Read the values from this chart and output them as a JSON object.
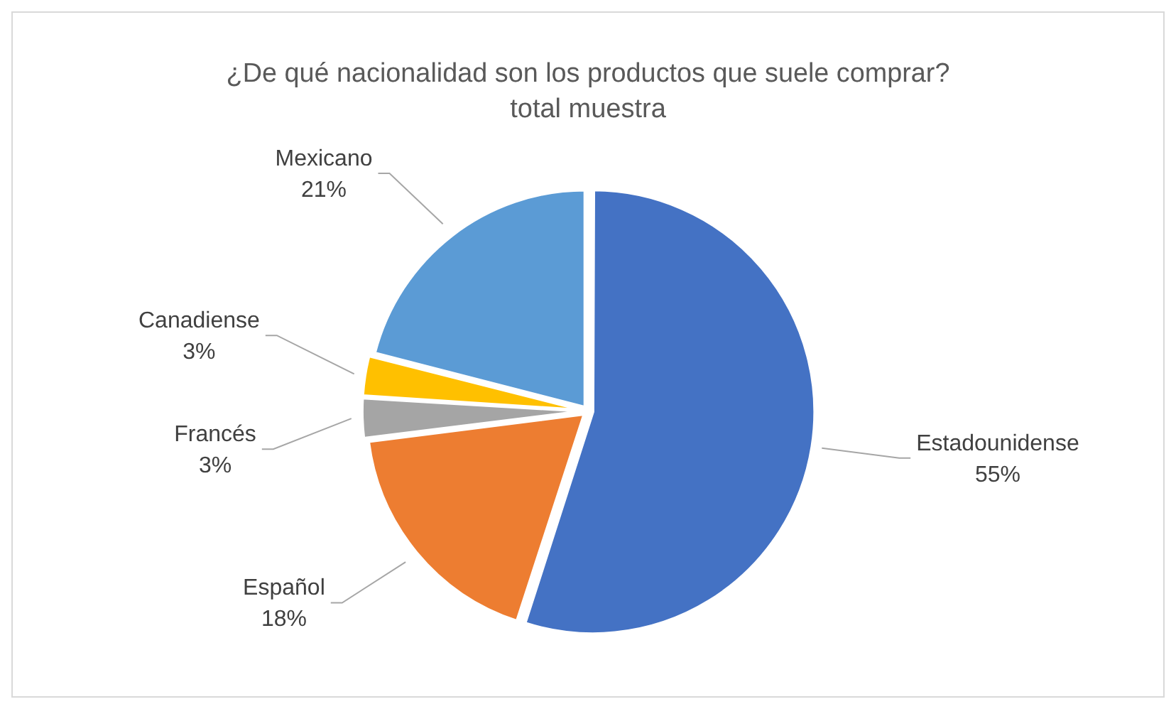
{
  "chart_data": {
    "type": "pie",
    "title": "¿De qué nacionalidad son los productos que suele comprar?",
    "subtitle": "total muestra",
    "categories": [
      "Estadounidense",
      "Español",
      "Francés",
      "Canadiense",
      "Mexicano"
    ],
    "values": [
      55,
      18,
      3,
      3,
      21
    ],
    "colors": [
      "#4472c4",
      "#ed7d31",
      "#a5a5a5",
      "#ffc000",
      "#5b9bd5"
    ],
    "value_labels": [
      "55%",
      "18%",
      "3%",
      "3%",
      "21%"
    ],
    "legend": false
  }
}
